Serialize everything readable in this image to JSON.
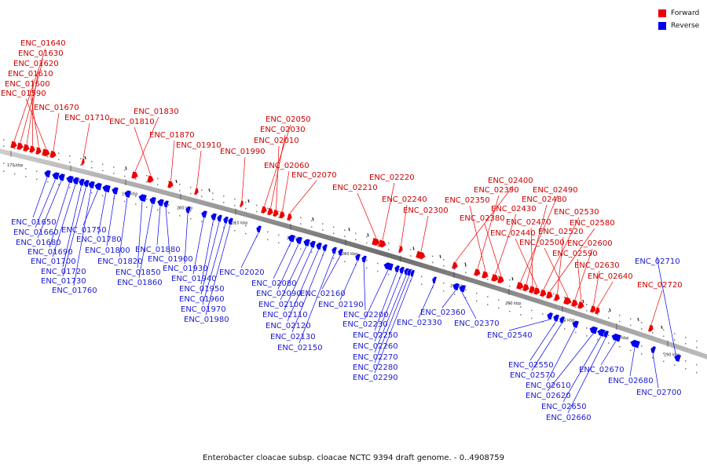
{
  "caption": "Enterobacter cloacae subsp. cloacae NCTC 9394 draft genome. - 0..4908759",
  "legend": {
    "forward": {
      "label": "Forward",
      "color": "#ee0000"
    },
    "reverse": {
      "label": "Reverse",
      "color": "#0000ee"
    }
  },
  "scale_labels": [
    "170 kbp",
    "180 kbp",
    "190 kbp",
    "200 kbp",
    "210 kbp",
    "220 kbp",
    "230 kbp",
    "240 kbp",
    "250 kbp",
    "260 kbp",
    "270 kbp",
    "280 kbp",
    "290 kbp"
  ],
  "forward_genes": [
    "ENC_01640",
    "ENC_01630",
    "ENC_01620",
    "ENC_01610",
    "ENC_01600",
    "ENC_01590",
    "ENC_01670",
    "ENC_01710",
    "ENC_01830",
    "ENC_01810",
    "ENC_01870",
    "ENC_01910",
    "ENC_01990",
    "ENC_02050",
    "ENC_02030",
    "ENC_02010",
    "ENC_02060",
    "ENC_02070",
    "ENC_02220",
    "ENC_02210",
    "ENC_02240",
    "ENC_02300",
    "ENC_02400",
    "ENC_02390",
    "ENC_02350",
    "ENC_02430",
    "ENC_02380",
    "ENC_02490",
    "ENC_02480",
    "ENC_02470",
    "ENC_02440",
    "ENC_02530",
    "ENC_02580",
    "ENC_02520",
    "ENC_02500",
    "ENC_02600",
    "ENC_02590",
    "ENC_02630",
    "ENC_02640",
    "ENC_02720"
  ],
  "reverse_genes": [
    "ENC_01650",
    "ENC_01660",
    "ENC_01680",
    "ENC_01690",
    "ENC_01700",
    "ENC_01720",
    "ENC_01730",
    "ENC_01760",
    "ENC_01750",
    "ENC_01780",
    "ENC_01800",
    "ENC_01820",
    "ENC_01850",
    "ENC_01860",
    "ENC_01880",
    "ENC_01900",
    "ENC_01930",
    "ENC_01940",
    "ENC_01950",
    "ENC_01960",
    "ENC_01970",
    "ENC_01980",
    "ENC_02020",
    "ENC_02080",
    "ENC_02090",
    "ENC_02100",
    "ENC_02110",
    "ENC_02120",
    "ENC_02130",
    "ENC_02150",
    "ENC_02160",
    "ENC_02190",
    "ENC_02200",
    "ENC_02230",
    "ENC_02250",
    "ENC_02260",
    "ENC_02270",
    "ENC_02280",
    "ENC_02290",
    "ENC_02330",
    "ENC_02360",
    "ENC_02370",
    "ENC_02540",
    "ENC_02550",
    "ENC_02570",
    "ENC_02610",
    "ENC_02620",
    "ENC_02650",
    "ENC_02660",
    "ENC_02670",
    "ENC_02680",
    "ENC_02700",
    "ENC_02710"
  ]
}
